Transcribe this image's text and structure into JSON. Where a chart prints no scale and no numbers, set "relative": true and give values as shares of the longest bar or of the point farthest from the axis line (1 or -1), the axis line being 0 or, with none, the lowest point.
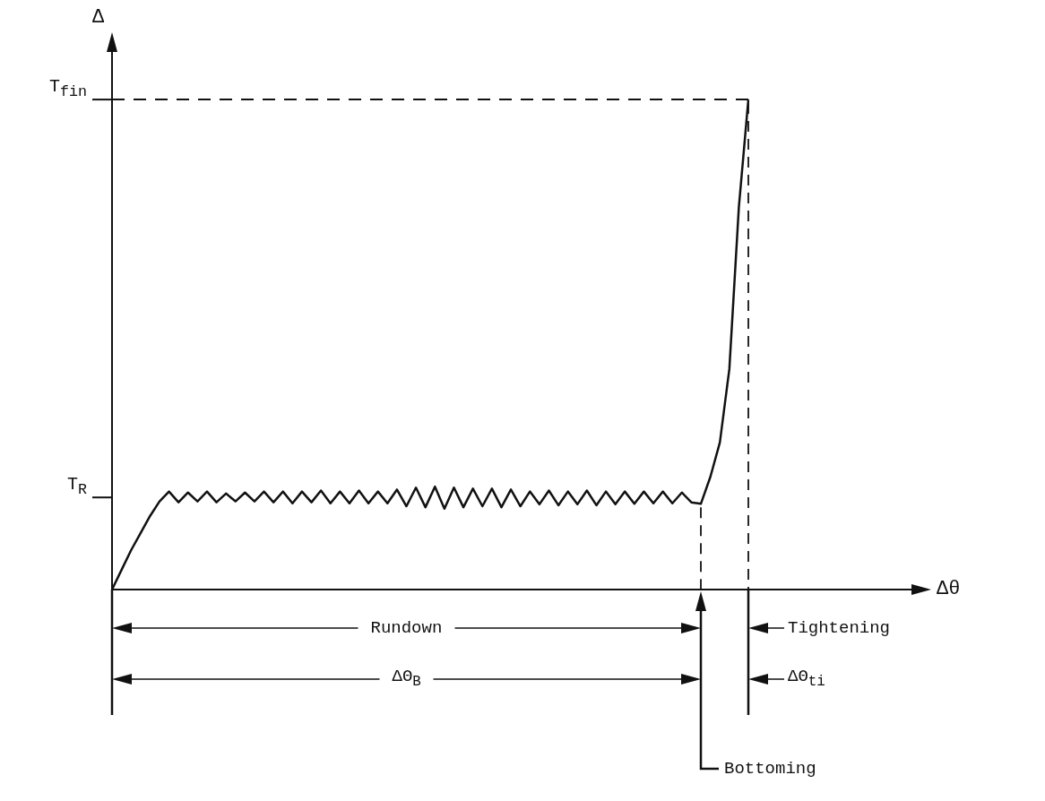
{
  "chart_data": {
    "type": "line",
    "ylabel": "Δ",
    "relative": true,
    "categories": [
      null,
      null,
      null,
      null,
      null,
      null,
      null,
      null,
      null,
      null,
      null,
      null,
      null,
      null,
      null,
      null,
      null,
      null,
      null,
      null,
      null,
      null,
      null,
      null,
      null,
      null,
      null,
      null,
      null,
      null,
      null,
      null,
      null,
      null,
      null,
      null,
      null,
      null,
      null,
      null,
      null,
      null,
      null,
      null,
      null,
      null,
      null,
      null,
      null,
      null,
      null,
      null,
      null,
      null,
      null,
      null,
      null,
      null,
      null,
      null,
      null,
      null,
      null,
      null,
      null,
      null,
      null,
      null
    ],
    "series": [
      {
        "color": "#111111",
        "values": [
          0,
          0.04,
          0.08,
          0.115,
          0.15,
          0.18,
          0.2,
          0.178,
          0.198,
          0.18,
          0.2,
          0.178,
          0.196,
          0.18,
          0.198,
          0.18,
          0.2,
          0.178,
          0.2,
          0.176,
          0.2,
          0.178,
          0.202,
          0.176,
          0.2,
          0.176,
          0.202,
          0.176,
          0.2,
          0.176,
          0.204,
          0.17,
          0.208,
          0.168,
          0.21,
          0.165,
          0.208,
          0.168,
          0.206,
          0.17,
          0.206,
          0.168,
          0.204,
          0.17,
          0.2,
          0.174,
          0.202,
          0.172,
          0.2,
          0.174,
          0.202,
          0.172,
          0.2,
          0.174,
          0.2,
          0.175,
          0.2,
          0.176,
          0.2,
          0.176,
          0.198,
          0.178,
          0.175,
          0.23,
          0.3,
          0.45,
          0.78,
          1.0
        ]
      }
    ],
    "grid": false,
    "legend": false,
    "marker": "none",
    "line_style": "solid",
    "ref_lines": [
      {
        "axis": "y",
        "value": 1,
        "label": "T$_{fin}$",
        "line_style": "dashed",
        "color": "#111111"
      },
      {
        "axis": "y",
        "value": 0.188,
        "label": "T$_{R}$"
      }
    ],
    "annotations": [
      "Rundown",
      "Tightening",
      "ΔΘ$_{B}$",
      "ΔΘ$_{ti}$",
      "Bottoming",
      "Δθ"
    ]
  }
}
